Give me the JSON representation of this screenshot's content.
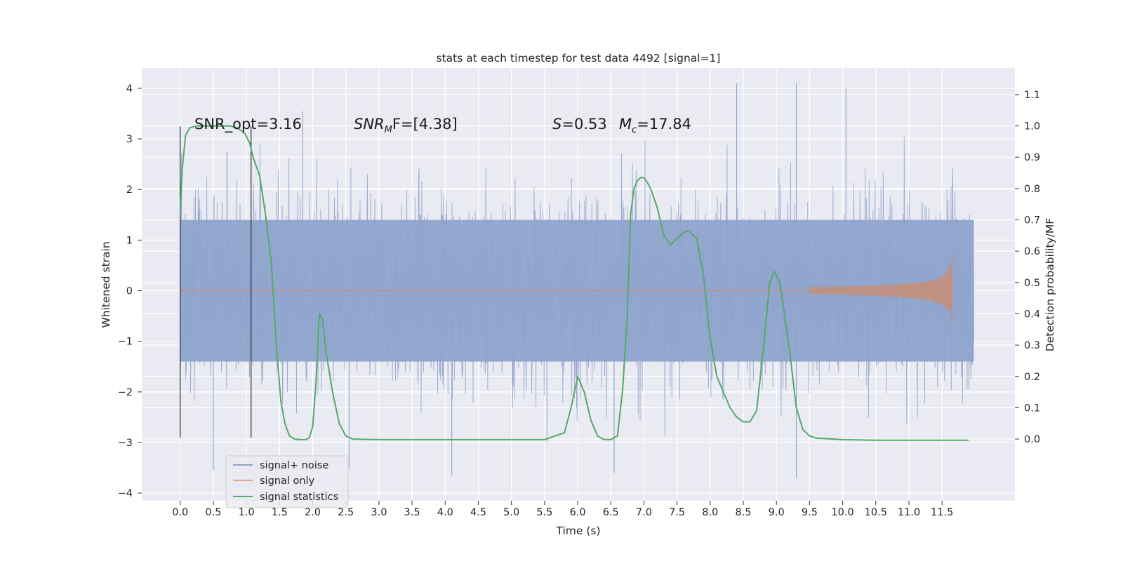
{
  "chart_data": {
    "type": "line",
    "title": "stats at each timestep for test data 4492 [signal=1]",
    "xlabel": "Time (s)",
    "ylabel": "Whitened strain",
    "ylabel_right": "Detection probability/MF",
    "xlim": [
      -0.58,
      12.6
    ],
    "ylim": [
      -4.15,
      4.4
    ],
    "ylim_right": [
      -0.197,
      1.185
    ],
    "xticks": [
      "0.0",
      "0.5",
      "1.0",
      "1.5",
      "2.0",
      "2.5",
      "3.0",
      "3.5",
      "4.0",
      "4.5",
      "5.0",
      "5.5",
      "6.0",
      "6.5",
      "7.0",
      "7.5",
      "8.0",
      "8.5",
      "9.0",
      "9.5",
      "10.0",
      "10.5",
      "11.0",
      "11.5"
    ],
    "yticks_left": [
      "4",
      "3",
      "2",
      "1",
      "0",
      "−1",
      "−2",
      "−3",
      "−4"
    ],
    "yticks_right": [
      "1.1",
      "1.0",
      "0.9",
      "0.8",
      "0.7",
      "0.6",
      "0.5",
      "0.4",
      "0.3",
      "0.2",
      "0.1",
      "0.0"
    ],
    "grid": true,
    "legend_position": "lower-left",
    "annotations": {
      "snr_opt": "SNR_opt=3.16",
      "snr_mf_main": "SNR",
      "snr_mf_sub": "M",
      "snr_mf_rest": "F=[4.38]",
      "s_sym": "S",
      "s_val": "=0.53",
      "mc_sym": "M",
      "mc_sub": "c",
      "mc_val": "=17.84"
    },
    "vertical_markers_x": [
      0.0,
      1.07
    ],
    "series": [
      {
        "name": "signal+ noise",
        "color": "#8fa4cc",
        "description_values": "whitened noise, core amplitude ±1.4, spikes to about ±4",
        "x_range": [
          0.0,
          11.98
        ],
        "spike_peaks": [
          {
            "x": 1.85,
            "y": 3.55
          },
          {
            "x": 2.55,
            "y": -3.5
          },
          {
            "x": 4.1,
            "y": -3.65
          },
          {
            "x": 6.55,
            "y": -3.6
          },
          {
            "x": 8.4,
            "y": 4.1
          },
          {
            "x": 9.3,
            "y": 4.1
          },
          {
            "x": 9.3,
            "y": -3.7
          },
          {
            "x": 10.05,
            "y": 4.0
          },
          {
            "x": 0.5,
            "y": -3.55
          }
        ]
      },
      {
        "name": "signal only",
        "color": "#dd8452",
        "description_values": "near zero until ~9.5 s then chirp growing to about ±0.68 at 11.65 s",
        "chirp_start": 9.5,
        "chirp_peak_x": 11.65,
        "chirp_peak_amp": 0.68
      },
      {
        "name": "signal statistics",
        "color": "#55a868",
        "axis": "right",
        "x": [
          0.0,
          0.03,
          0.08,
          0.15,
          0.25,
          0.4,
          0.6,
          0.75,
          0.85,
          0.92,
          0.98,
          1.05,
          1.1,
          1.2,
          1.3,
          1.38,
          1.45,
          1.52,
          1.58,
          1.65,
          1.72,
          1.8,
          1.9,
          1.95,
          2.0,
          2.05,
          2.1,
          2.15,
          2.2,
          2.3,
          2.4,
          2.5,
          2.6,
          2.75,
          3.0,
          4.0,
          5.0,
          5.5,
          5.8,
          5.9,
          6.0,
          6.1,
          6.2,
          6.3,
          6.4,
          6.5,
          6.6,
          6.68,
          6.75,
          6.8,
          6.85,
          6.9,
          6.95,
          7.0,
          7.05,
          7.1,
          7.2,
          7.3,
          7.4,
          7.5,
          7.6,
          7.65,
          7.7,
          7.8,
          7.9,
          8.0,
          8.1,
          8.2,
          8.3,
          8.4,
          8.5,
          8.6,
          8.7,
          8.8,
          8.9,
          8.97,
          9.0,
          9.05,
          9.1,
          9.2,
          9.3,
          9.4,
          9.5,
          9.6,
          10.0,
          10.5,
          11.0,
          11.5,
          11.9
        ],
        "y": [
          0.72,
          0.86,
          0.97,
          0.995,
          1.0,
          1.0,
          1.0,
          1.0,
          0.995,
          0.985,
          0.975,
          0.945,
          0.9,
          0.84,
          0.7,
          0.55,
          0.3,
          0.12,
          0.05,
          0.01,
          0.0,
          -0.002,
          -0.002,
          0.005,
          0.04,
          0.18,
          0.4,
          0.38,
          0.28,
          0.15,
          0.05,
          0.01,
          0.0,
          -0.001,
          -0.002,
          -0.002,
          -0.002,
          -0.002,
          0.02,
          0.1,
          0.2,
          0.15,
          0.06,
          0.01,
          -0.002,
          -0.002,
          0.01,
          0.16,
          0.4,
          0.72,
          0.8,
          0.825,
          0.835,
          0.835,
          0.82,
          0.8,
          0.74,
          0.65,
          0.62,
          0.64,
          0.66,
          0.665,
          0.66,
          0.64,
          0.52,
          0.32,
          0.2,
          0.15,
          0.1,
          0.07,
          0.055,
          0.055,
          0.09,
          0.28,
          0.5,
          0.535,
          0.52,
          0.5,
          0.43,
          0.28,
          0.1,
          0.03,
          0.01,
          0.003,
          -0.002,
          -0.004,
          -0.004,
          -0.004,
          -0.004
        ]
      }
    ]
  }
}
